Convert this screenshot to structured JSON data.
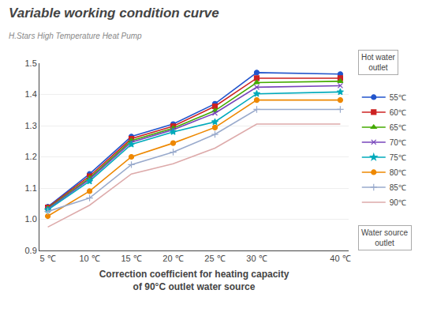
{
  "chart_data": {
    "type": "line",
    "title": "Variable working condition curve",
    "subtitle": "H.Stars High Temperature Heat Pump",
    "xlabel": "Correction coefficient for heating capacity\nof 90°C outlet water source",
    "annotations": [
      "Hot water\noutlet",
      "Water source\noutlet"
    ],
    "x": [
      5,
      10,
      15,
      20,
      25,
      30,
      40
    ],
    "series": [
      {
        "name": "55℃",
        "color": "#2255cc",
        "marker": "circle",
        "values": [
          1.04,
          1.145,
          1.265,
          1.305,
          1.37,
          1.47,
          1.465
        ]
      },
      {
        "name": "60℃",
        "color": "#cc2222",
        "marker": "square",
        "values": [
          1.038,
          1.138,
          1.258,
          1.298,
          1.362,
          1.452,
          1.452
        ]
      },
      {
        "name": "65℃",
        "color": "#44aa00",
        "marker": "triangle",
        "values": [
          1.035,
          1.132,
          1.252,
          1.292,
          1.348,
          1.438,
          1.442
        ]
      },
      {
        "name": "70℃",
        "color": "#7744bb",
        "marker": "x",
        "values": [
          1.033,
          1.128,
          1.247,
          1.287,
          1.34,
          1.423,
          1.428
        ]
      },
      {
        "name": "75℃",
        "color": "#00aabb",
        "marker": "star",
        "values": [
          1.03,
          1.122,
          1.24,
          1.28,
          1.312,
          1.402,
          1.408
        ]
      },
      {
        "name": "80℃",
        "color": "#ee8800",
        "marker": "circle",
        "values": [
          1.01,
          1.09,
          1.2,
          1.244,
          1.294,
          1.382,
          1.382
        ]
      },
      {
        "name": "85℃",
        "color": "#99aacc",
        "marker": "plus",
        "values": [
          1.025,
          1.068,
          1.175,
          1.215,
          1.272,
          1.352,
          1.352
        ]
      },
      {
        "name": "90℃",
        "color": "#ddaaaa",
        "marker": "none",
        "values": [
          0.975,
          1.045,
          1.145,
          1.178,
          1.228,
          1.305,
          1.305
        ]
      }
    ],
    "xlim": [
      4,
      41
    ],
    "xticks": [
      {
        "value": 5,
        "label": "5 ℃"
      },
      {
        "value": 10,
        "label": "10 ℃"
      },
      {
        "value": 15,
        "label": "15 ℃"
      },
      {
        "value": 20,
        "label": "20 ℃"
      },
      {
        "value": 25,
        "label": "25 ℃"
      },
      {
        "value": 30,
        "label": "30 ℃"
      },
      {
        "value": 40,
        "label": "40 ℃"
      }
    ],
    "ylim": [
      0.9,
      1.5
    ],
    "yticks": [
      0.9,
      {
        "value": 1.0,
        "label": "1.0"
      },
      1.1,
      1.2,
      1.3,
      1.4,
      1.5
    ],
    "grid": "y",
    "legend": "right"
  }
}
